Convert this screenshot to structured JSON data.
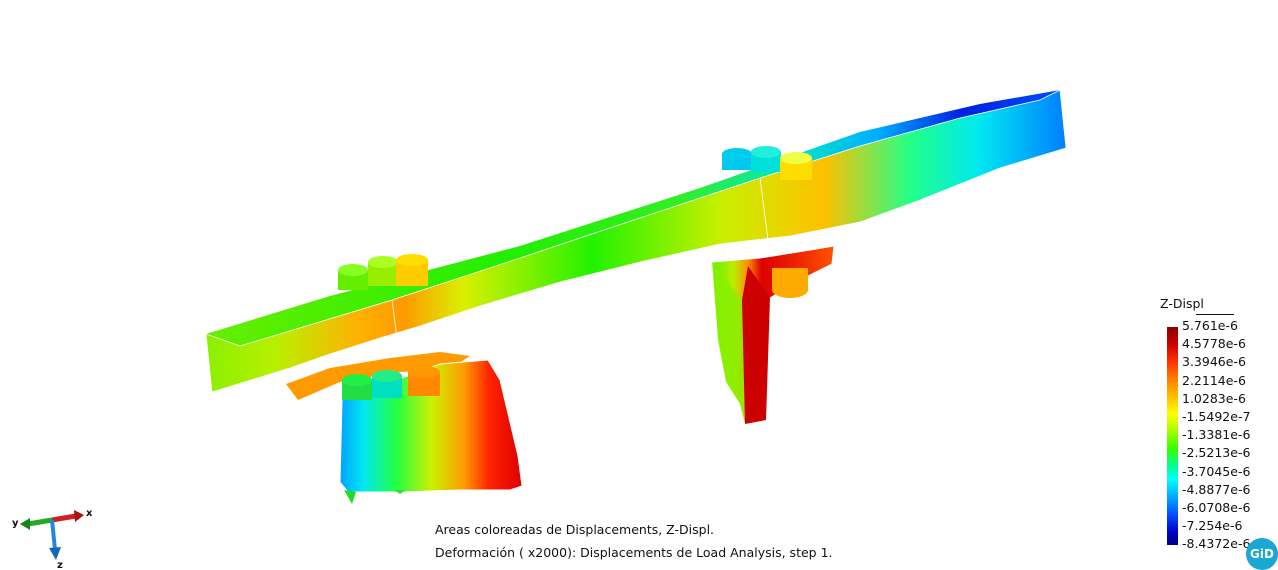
{
  "captions": {
    "line1": "Areas coloreadas de Displacements, Z-Displ.",
    "line2": "Deformación ( x2000): Displacements de Load Analysis, step 1."
  },
  "legend": {
    "title": "Z-Displ",
    "values": [
      "5.761e-6",
      "4.5778e-6",
      "3.3946e-6",
      "2.2114e-6",
      "1.0283e-6",
      "-1.5492e-7",
      "-1.3381e-6",
      "-2.5213e-6",
      "-3.7045e-6",
      "-4.8877e-6",
      "-6.0708e-6",
      "-7.254e-6",
      "-8.4372e-6"
    ],
    "colors": {
      "max": "#8b0000",
      "min": "#000080"
    }
  },
  "axes": {
    "x_label": "x",
    "y_label": "y",
    "z_label": "z",
    "x_color": "#cc2222",
    "y_color": "#22aa22",
    "z_color": "#2288dd"
  },
  "logo": {
    "text": "GiD",
    "color": "#1aa7d4"
  }
}
